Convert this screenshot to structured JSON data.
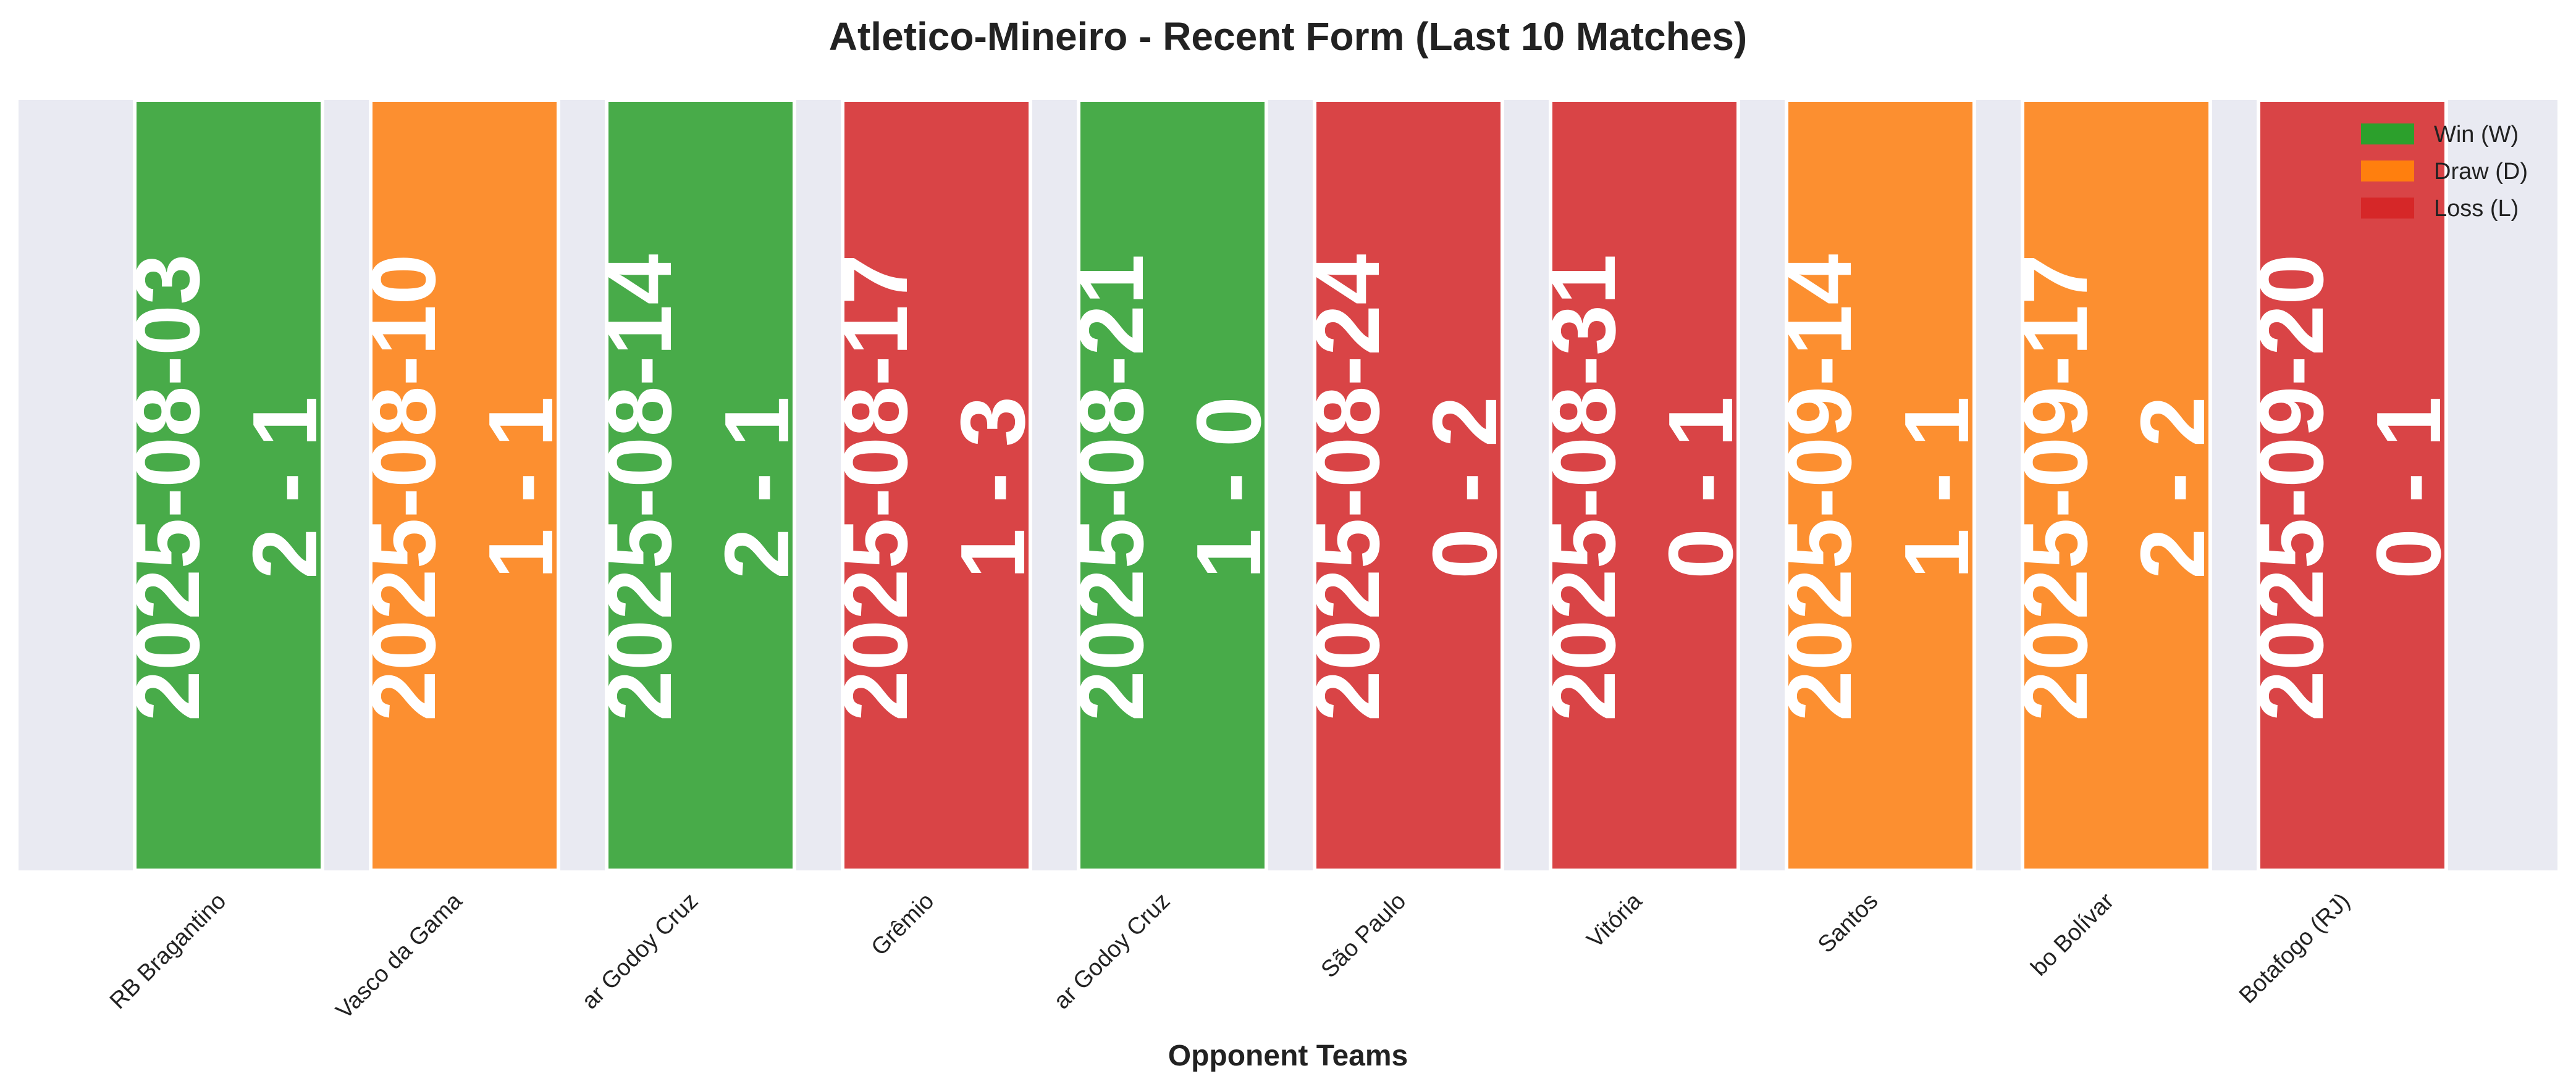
{
  "chart_data": {
    "type": "bar",
    "title": "Atletico-Mineiro - Recent Form (Last 10 Matches)",
    "xlabel": "Opponent Teams",
    "ylabel": "",
    "grid": false,
    "legend_position": "top-right",
    "legend": [
      {
        "label": "Win (W)",
        "result": "W"
      },
      {
        "label": "Draw (D)",
        "result": "D"
      },
      {
        "label": "Loss (L)",
        "result": "L"
      }
    ],
    "colors": {
      "W": "#2ca02c",
      "D": "#ff7f0e",
      "L": "#d62728",
      "background": "#e9eaf2"
    },
    "categories": [
      "RB Bragantino",
      "Vasco da Gama",
      "ar Godoy Cruz",
      "Grêmio",
      "ar Godoy Cruz",
      "São Paulo",
      "Vitória",
      "Santos",
      "bo Bolívar",
      "Botafogo (RJ)"
    ],
    "matches": [
      {
        "opponent": "RB Bragantino",
        "date": "2025-08-03",
        "score": "2 - 1",
        "result": "W"
      },
      {
        "opponent": "Vasco da Gama",
        "date": "2025-08-10",
        "score": "1 - 1",
        "result": "D"
      },
      {
        "opponent": "ar Godoy Cruz",
        "date": "2025-08-14",
        "score": "2 - 1",
        "result": "W"
      },
      {
        "opponent": "Grêmio",
        "date": "2025-08-17",
        "score": "1 - 3",
        "result": "L"
      },
      {
        "opponent": "ar Godoy Cruz",
        "date": "2025-08-21",
        "score": "1 - 0",
        "result": "W"
      },
      {
        "opponent": "São Paulo",
        "date": "2025-08-24",
        "score": "0 - 2",
        "result": "L"
      },
      {
        "opponent": "Vitória",
        "date": "2025-08-31",
        "score": "0 - 1",
        "result": "L"
      },
      {
        "opponent": "Santos",
        "date": "2025-09-14",
        "score": "1 - 1",
        "result": "D"
      },
      {
        "opponent": "bo Bolívar",
        "date": "2025-09-17",
        "score": "2 - 2",
        "result": "D"
      },
      {
        "opponent": "Botafogo (RJ)",
        "date": "2025-09-20",
        "score": "0 - 1",
        "result": "L"
      }
    ]
  }
}
